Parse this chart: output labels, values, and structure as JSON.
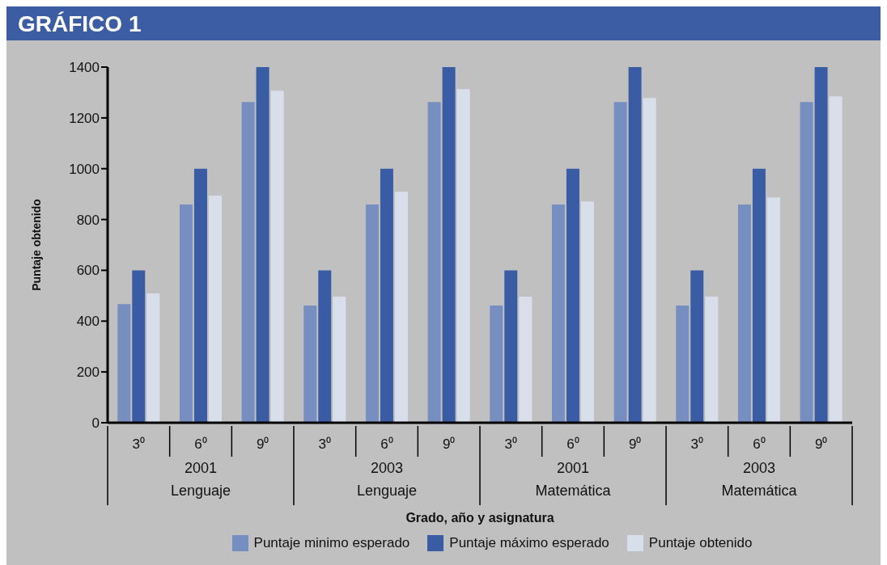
{
  "chart_data": {
    "type": "bar",
    "title": "GRÁFICO 1",
    "xlabel": "Grado, año y asignatura",
    "ylabel": "Puntaje obtenido",
    "categories": [
      "3⁰",
      "6⁰",
      "9⁰",
      "3⁰",
      "6⁰",
      "9⁰",
      "3⁰",
      "6⁰",
      "9⁰",
      "3⁰",
      "6⁰",
      "9⁰"
    ],
    "annotations": [
      "2001",
      "2003",
      "2001",
      "2003",
      "Lenguaje",
      "Lenguaje",
      "Matemática",
      "Matemática"
    ],
    "series": [
      {
        "name": "Puntaje minimo esperado",
        "color": "#778ec0",
        "values": [
          467,
          859,
          1262,
          461,
          859,
          1262,
          461,
          859,
          1262,
          461,
          859,
          1262
        ]
      },
      {
        "name": "Puntaje máximo esperado",
        "color": "#3a5ca4",
        "values": [
          600,
          1000,
          1400,
          600,
          1000,
          1400,
          600,
          1000,
          1400,
          600,
          1000,
          1400
        ]
      },
      {
        "name": "Puntaje obtenido",
        "color": "#d8dfeb",
        "values": [
          509,
          894,
          1307,
          496,
          909,
          1313,
          496,
          871,
          1278,
          496,
          887,
          1285
        ]
      }
    ],
    "ylim": [
      0,
      1400
    ],
    "yticks": [
      0,
      200,
      400,
      600,
      800,
      1000,
      1200,
      1400
    ],
    "grid": false,
    "legend": "bottom"
  }
}
